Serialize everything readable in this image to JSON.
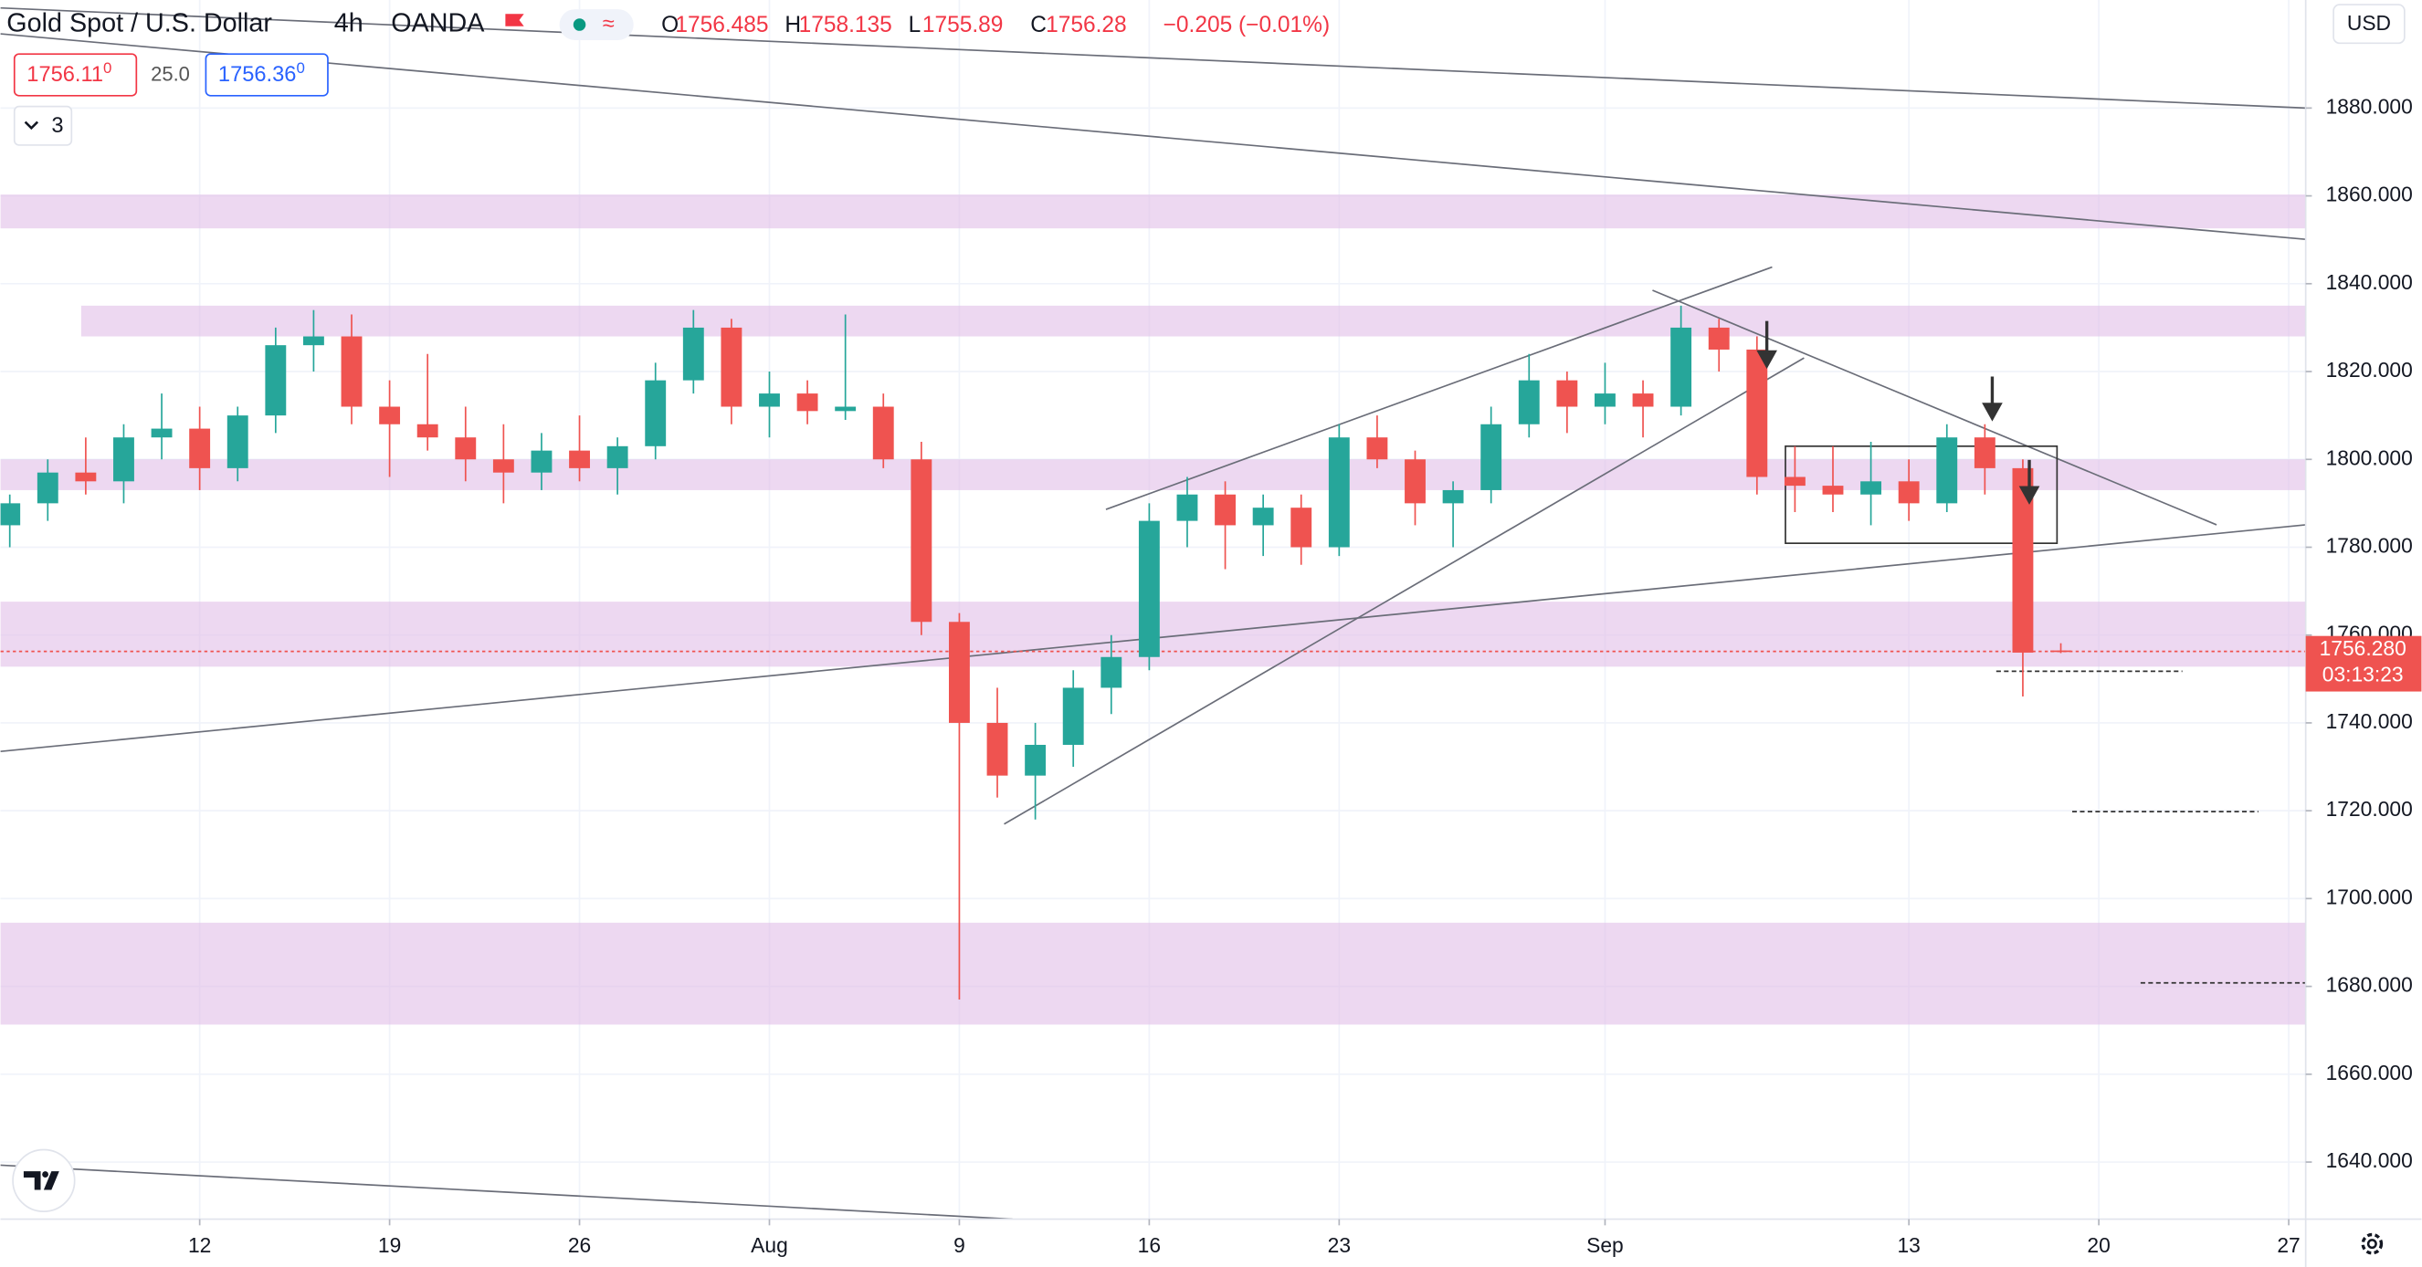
{
  "chart_data": {
    "type": "candlestick",
    "title": "Gold Spot / U.S. Dollar",
    "interval": "4h",
    "broker": "OANDA",
    "ohlc_letters": [
      "O",
      "H",
      "L",
      "C"
    ],
    "change_text": "−0.205 (−0.01%)",
    "bid": "1756.11",
    "bid_pip": "0",
    "spread": "25.0",
    "ask": "1756.36",
    "ask_pip": "0",
    "indicator_count": "3",
    "currency": "USD",
    "close_label": "1756.280",
    "countdown": "03:13:23",
    "up_color": "#26a69a",
    "down_color": "#ef5350",
    "zone_color": "#e1bee7",
    "x": [
      -5,
      -4,
      -3,
      -2,
      -1,
      0,
      1,
      2,
      3,
      4,
      5,
      6,
      7,
      8,
      9,
      10,
      11,
      12,
      13,
      14,
      15,
      16,
      17,
      18,
      19,
      20,
      21,
      22,
      23,
      24,
      25,
      26,
      27,
      28,
      29,
      30,
      31,
      32,
      33,
      34,
      35,
      36,
      37,
      38,
      39,
      40,
      41,
      42,
      43,
      44,
      45,
      46,
      47,
      48,
      49
    ],
    "open": [
      1785,
      1790,
      1797,
      1795,
      1805,
      1807,
      1798,
      1810,
      1826,
      1828,
      1812,
      1808,
      1805,
      1800,
      1797,
      1802,
      1798,
      1803,
      1818,
      1830,
      1812,
      1815,
      1811,
      1812,
      1800,
      1763,
      1740,
      1728,
      1735,
      1748,
      1755,
      1786,
      1792,
      1785,
      1789,
      1780,
      1805,
      1800,
      1790,
      1793,
      1808,
      1818,
      1812,
      1815,
      1812,
      1830,
      1825,
      1796,
      1794,
      1792,
      1795,
      1790,
      1805,
      1798,
      1756.485
    ],
    "high": [
      1792,
      1800,
      1805,
      1808,
      1815,
      1812,
      1812,
      1830,
      1834,
      1833,
      1818,
      1824,
      1812,
      1808,
      1806,
      1810,
      1805,
      1822,
      1834,
      1832,
      1820,
      1818,
      1833,
      1815,
      1804,
      1765,
      1748,
      1740,
      1752,
      1760,
      1790,
      1796,
      1795,
      1792,
      1792,
      1808,
      1810,
      1802,
      1795,
      1812,
      1824,
      1820,
      1822,
      1818,
      1835,
      1832,
      1828,
      1803,
      1803,
      1804,
      1800,
      1808,
      1808,
      1800,
      1758.135
    ],
    "low": [
      1780,
      1786,
      1792,
      1790,
      1800,
      1793,
      1795,
      1806,
      1820,
      1808,
      1796,
      1802,
      1795,
      1790,
      1793,
      1795,
      1792,
      1800,
      1815,
      1808,
      1805,
      1808,
      1809,
      1798,
      1760,
      1677,
      1723,
      1718,
      1730,
      1742,
      1752,
      1780,
      1775,
      1778,
      1776,
      1778,
      1798,
      1785,
      1780,
      1790,
      1805,
      1806,
      1808,
      1805,
      1810,
      1820,
      1792,
      1788,
      1788,
      1785,
      1786,
      1788,
      1792,
      1746,
      1755.89
    ],
    "close": [
      1790,
      1797,
      1795,
      1805,
      1807,
      1798,
      1810,
      1826,
      1828,
      1812,
      1808,
      1805,
      1800,
      1797,
      1802,
      1798,
      1803,
      1818,
      1830,
      1812,
      1815,
      1811,
      1812,
      1800,
      1763,
      1740,
      1728,
      1735,
      1748,
      1755,
      1786,
      1792,
      1785,
      1789,
      1780,
      1805,
      1800,
      1790,
      1793,
      1808,
      1818,
      1812,
      1815,
      1812,
      1830,
      1825,
      1796,
      1794,
      1792,
      1795,
      1790,
      1805,
      1798,
      1756,
      1756.28
    ],
    "zones": [
      {
        "from": 1852.6,
        "to": 1860.3,
        "start": -5.244
      },
      {
        "from": 1828,
        "to": 1835,
        "start": -3.12
      },
      {
        "from": 1793,
        "to": 1800,
        "start": -5.244
      },
      {
        "from": 1752.8,
        "to": 1767.6,
        "start": -5.244
      },
      {
        "from": 1671.3,
        "to": 1694.5,
        "start": -5.244
      }
    ],
    "lines": [
      {
        "x": [
          -5.244,
          55.447
        ],
        "y": [
          1902.8,
          1880
        ]
      },
      {
        "x": [
          -5.244,
          55.447
        ],
        "y": [
          1896.9,
          1850.1
        ]
      },
      {
        "x": [
          -5.244,
          55.447
        ],
        "y": [
          1733.5,
          1785.1
        ]
      },
      {
        "x": [
          -5.244,
          21.4
        ],
        "y": [
          1639.3,
          1627
        ]
      },
      {
        "x": [
          23.86,
          41.4
        ],
        "y": [
          1788.6,
          1843.8
        ]
      },
      {
        "x": [
          21.18,
          42.24
        ],
        "y": [
          1716.96,
          1823.1
        ]
      },
      {
        "x": [
          38.25,
          53.1
        ],
        "y": [
          1838.5,
          1785.1
        ]
      }
    ],
    "box": {
      "x": [
        41.75,
        48.9
      ],
      "y": [
        1780.9,
        1803
      ]
    },
    "targets": [
      {
        "x": [
          47.3,
          52.2
        ],
        "y": 1751.75
      },
      {
        "x": [
          49.3,
          54.2
        ],
        "y": 1719.8
      },
      {
        "x": [
          51.1,
          55.447
        ],
        "y": 1680.8
      }
    ],
    "xlim": [
      -5.244,
      55.447
    ],
    "ylim": [
      1627,
      1904.6
    ],
    "xticks": [
      {
        "value": 0,
        "label": "12"
      },
      {
        "value": 5,
        "label": "19"
      },
      {
        "value": 10,
        "label": "26"
      },
      {
        "value": 15,
        "label": "Aug"
      },
      {
        "value": 20,
        "label": "9"
      },
      {
        "value": 25,
        "label": "16"
      },
      {
        "value": 30,
        "label": "23"
      },
      {
        "value": 37,
        "label": "Sep"
      },
      {
        "value": 45,
        "label": "13"
      },
      {
        "value": 50,
        "label": "20"
      },
      {
        "value": 55,
        "label": "27"
      }
    ],
    "yticks": [
      {
        "value": 1640,
        "label": "1640.000"
      },
      {
        "value": 1660,
        "label": "1660.000"
      },
      {
        "value": 1680,
        "label": "1680.000"
      },
      {
        "value": 1700,
        "label": "1700.000"
      },
      {
        "value": 1720,
        "label": "1720.000"
      },
      {
        "value": 1740,
        "label": "1740.000"
      },
      {
        "value": 1760,
        "label": "1760.000"
      },
      {
        "value": 1780,
        "label": "1780.000"
      },
      {
        "value": 1800,
        "label": "1800.000"
      },
      {
        "value": 1820,
        "label": "1820.000"
      },
      {
        "value": 1840,
        "label": "1840.000"
      },
      {
        "value": 1860,
        "label": "1860.000"
      },
      {
        "value": 1880,
        "label": "1880.000"
      }
    ],
    "grid": true
  }
}
